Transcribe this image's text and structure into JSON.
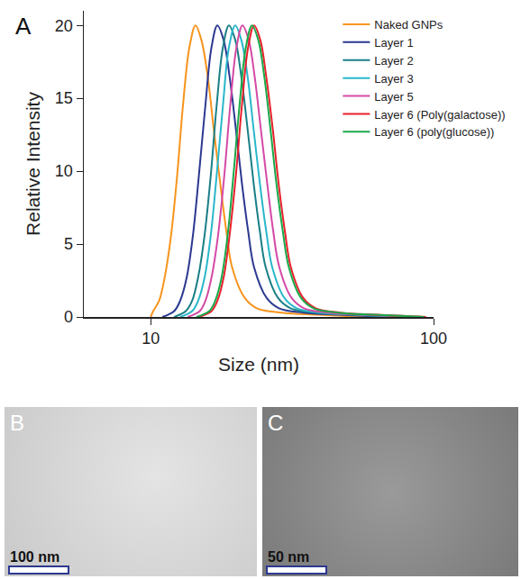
{
  "chart_data": {
    "type": "line",
    "annotations": [
      "A"
    ],
    "xlabel": "Size (nm)",
    "ylabel": "Relative Intensity",
    "log": "x",
    "xlim": [
      5.8,
      100
    ],
    "xticks": [
      10,
      100
    ],
    "ylim": [
      0,
      21
    ],
    "yticks": [
      0,
      5,
      10,
      15,
      20
    ],
    "grid": false,
    "legend": "top right",
    "series": [
      {
        "name": "Naked GNPs",
        "color": "#f7941d",
        "x": [
          10.0,
          10.2,
          10.7,
          11.2,
          11.8,
          12.4,
          13.0,
          13.7,
          14.4,
          15.1,
          15.9,
          16.7,
          17.6,
          18.5,
          19.4,
          21.5,
          23.7,
          29.0,
          39.1,
          58.4
        ],
        "values": [
          0,
          0.4,
          1.1,
          2.7,
          5.6,
          9.7,
          14.5,
          18.5,
          20,
          19.0,
          16.5,
          12.9,
          9.2,
          5.9,
          3.4,
          1.3,
          0.6,
          0.3,
          0.15,
          0
        ]
      },
      {
        "name": "Layer 1",
        "color": "#2b3990",
        "x": [
          11.0,
          12.1,
          12.7,
          13.4,
          14.1,
          14.8,
          15.6,
          16.4,
          17.2,
          18.1,
          19.0,
          20.0,
          21.0,
          22.1,
          23.2,
          25.7,
          28.4,
          34.6,
          46.7,
          69.7
        ],
        "values": [
          0,
          0.4,
          1.1,
          2.7,
          5.6,
          9.7,
          14.5,
          18.5,
          20,
          19.0,
          16.5,
          12.9,
          9.2,
          5.9,
          3.4,
          1.3,
          0.6,
          0.3,
          0.15,
          0
        ]
      },
      {
        "name": "Layer 2",
        "color": "#1a7f86",
        "x": [
          12.1,
          13.3,
          14.0,
          14.7,
          15.5,
          16.3,
          17.1,
          18.0,
          18.9,
          19.9,
          20.9,
          22.0,
          23.1,
          24.3,
          25.5,
          28.2,
          31.2,
          38.1,
          51.4,
          76.6
        ],
        "values": [
          0,
          0.4,
          1.1,
          2.7,
          5.6,
          9.7,
          14.5,
          18.5,
          20,
          19.0,
          16.5,
          12.9,
          9.2,
          5.9,
          3.4,
          1.3,
          0.6,
          0.3,
          0.15,
          0
        ]
      },
      {
        "name": "Layer 3",
        "color": "#2ab7ca",
        "x": [
          12.7,
          14.0,
          14.7,
          15.5,
          16.3,
          17.1,
          18.0,
          18.9,
          19.9,
          20.9,
          22.0,
          23.1,
          24.3,
          25.6,
          26.9,
          29.7,
          32.8,
          40.1,
          54.1,
          80.7
        ],
        "values": [
          0,
          0.4,
          1.1,
          2.7,
          5.6,
          9.7,
          14.5,
          18.5,
          20,
          19.0,
          16.5,
          12.9,
          9.2,
          5.9,
          3.4,
          1.3,
          0.6,
          0.3,
          0.15,
          0
        ]
      },
      {
        "name": "Layer 5",
        "color": "#d44aa6",
        "x": [
          13.5,
          14.9,
          15.6,
          16.4,
          17.3,
          18.2,
          19.1,
          20.1,
          21.1,
          22.2,
          23.3,
          24.5,
          25.8,
          27.1,
          28.5,
          31.5,
          34.8,
          42.5,
          57.3,
          85.6
        ],
        "values": [
          0,
          0.4,
          1.1,
          2.7,
          5.6,
          9.7,
          14.5,
          18.5,
          20,
          19.0,
          16.5,
          12.9,
          9.2,
          5.9,
          3.4,
          1.3,
          0.6,
          0.3,
          0.15,
          0
        ]
      },
      {
        "name": "Layer 6 (Poly(galactose))",
        "color": "#e8202a",
        "x": [
          14.8,
          16.4,
          17.2,
          18.1,
          19.0,
          20.0,
          21.0,
          22.1,
          23.2,
          24.4,
          25.6,
          27.0,
          28.3,
          29.8,
          31.3,
          34.6,
          38.3,
          46.7,
          63.1,
          94.1
        ],
        "values": [
          0,
          0.4,
          1.1,
          2.7,
          5.6,
          9.7,
          14.5,
          18.5,
          20,
          19.0,
          16.5,
          12.9,
          9.2,
          5.9,
          3.4,
          1.3,
          0.6,
          0.3,
          0.15,
          0
        ]
      },
      {
        "name": "Layer 6 (poly(glucose))",
        "color": "#1aa84a",
        "x": [
          14.5,
          16.1,
          16.9,
          17.8,
          18.7,
          19.6,
          20.6,
          21.7,
          22.8,
          24.0,
          25.2,
          26.5,
          27.8,
          29.3,
          30.8,
          34.0,
          37.6,
          45.9,
          62.0,
          92.5
        ],
        "values": [
          0,
          0.4,
          1.1,
          2.7,
          5.6,
          9.7,
          14.5,
          18.5,
          20,
          19.0,
          16.5,
          12.9,
          9.2,
          5.9,
          3.4,
          1.3,
          0.6,
          0.3,
          0.15,
          0
        ]
      }
    ]
  },
  "images": [
    {
      "label": "B",
      "scale_bar": "100 nm"
    },
    {
      "label": "C",
      "scale_bar": "50 nm"
    }
  ]
}
